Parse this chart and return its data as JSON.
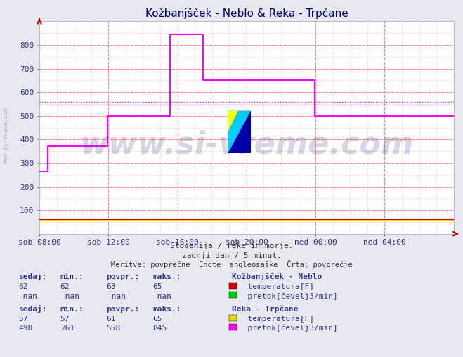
{
  "title": "Kožbanjšček - Neblo & Reka - Trpčane",
  "subtitle1": "Slovenija / reke in morje.",
  "subtitle2": "zadnji dan / 5 minut.",
  "subtitle3": "Meritve: povprečne  Enote: angleosaške  Črta: povprečje",
  "bg_color": "#e8e8f0",
  "plot_bg_color": "#ffffff",
  "grid_color_major": "#ff8888",
  "grid_color_minor": "#ffcccc",
  "x_labels": [
    "sob 08:00",
    "sob 12:00",
    "sob 16:00",
    "sob 20:00",
    "ned 00:00",
    "ned 04:00"
  ],
  "x_ticks_norm": [
    0.0,
    0.1667,
    0.3333,
    0.5,
    0.6667,
    0.8333
  ],
  "ylim": [
    0,
    900
  ],
  "yticks": [
    100,
    200,
    300,
    400,
    500,
    600,
    700,
    800
  ],
  "watermark_text": "www.si-vreme.com",
  "watermark_color": "#1a2a6e",
  "watermark_alpha": 0.18,
  "kozb_temp_value": 62,
  "reka_temp_value": 57,
  "reka_pretok_avg": 558,
  "kozb_temp_color": "#cc0000",
  "reka_temp_color": "#dddd00",
  "reka_pretok_color": "#ff00ff",
  "kozb_pretok_color": "#00cc00",
  "reka_pretok_step_x": [
    0.0,
    0.02,
    0.09,
    0.165,
    0.29,
    0.315,
    0.395,
    0.435,
    0.54,
    0.575,
    0.665,
    0.83,
    0.87,
    1.0
  ],
  "reka_pretok_step_y": [
    265,
    370,
    370,
    500,
    500,
    845,
    650,
    650,
    650,
    650,
    500,
    500,
    498,
    498
  ],
  "text_color": "#333388",
  "title_color": "#000077",
  "subtitle_color": "#333333"
}
